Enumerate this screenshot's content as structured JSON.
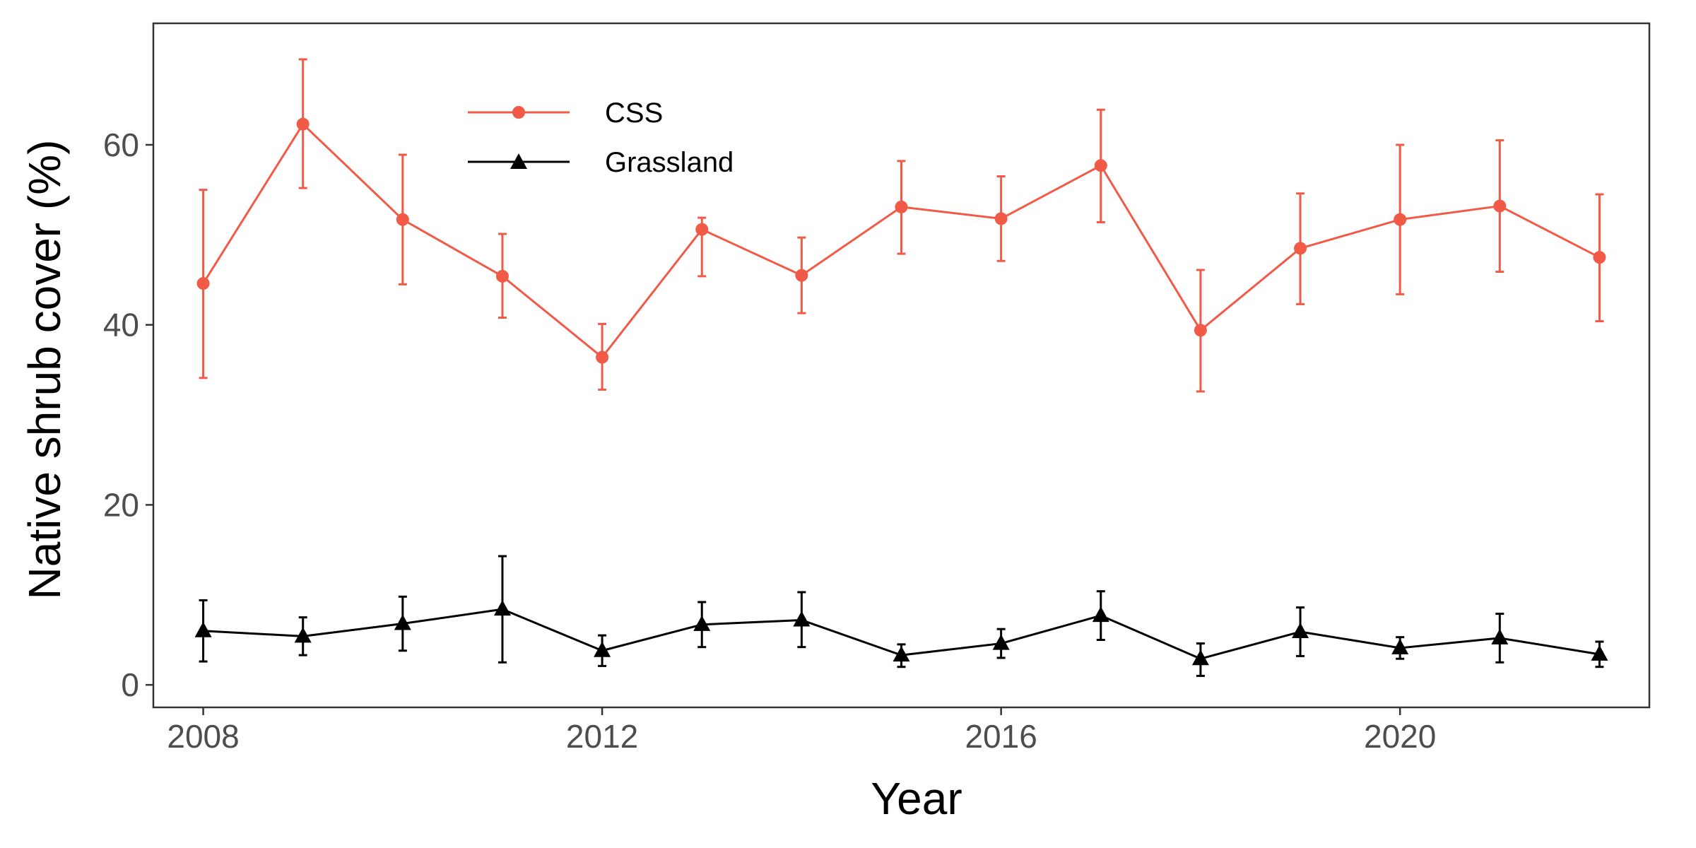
{
  "chart_data": {
    "type": "line",
    "xlabel": "Year",
    "ylabel": "Native shrub cover (%)",
    "xlim": [
      2007.5,
      2022.5
    ],
    "ylim": [
      -2.5,
      73.5
    ],
    "x_ticks": [
      2008,
      2012,
      2016,
      2020
    ],
    "y_ticks": [
      0,
      20,
      40,
      60
    ],
    "grid": false,
    "legend_position": "top-left inside",
    "x": [
      2008,
      2009,
      2010,
      2011,
      2012,
      2013,
      2014,
      2015,
      2016,
      2017,
      2018,
      2019,
      2020,
      2021,
      2022
    ],
    "series": [
      {
        "name": "CSS",
        "color": "#f15a47",
        "marker": "circle",
        "values": [
          44.6,
          62.3,
          51.7,
          45.4,
          36.4,
          50.6,
          45.5,
          53.1,
          51.8,
          57.7,
          39.4,
          48.5,
          51.7,
          53.2,
          47.5
        ],
        "lower": [
          34.1,
          55.2,
          44.5,
          40.8,
          32.8,
          45.4,
          41.3,
          47.9,
          47.1,
          51.4,
          32.6,
          42.3,
          43.4,
          45.9,
          40.4
        ],
        "upper": [
          55.0,
          69.5,
          58.9,
          50.1,
          40.1,
          51.9,
          49.7,
          58.2,
          56.5,
          63.9,
          46.1,
          54.6,
          60.0,
          60.5,
          54.5
        ]
      },
      {
        "name": "Grassland",
        "color": "#000000",
        "marker": "triangle",
        "values": [
          6.0,
          5.4,
          6.8,
          8.4,
          3.8,
          6.7,
          7.2,
          3.3,
          4.6,
          7.7,
          2.9,
          5.9,
          4.1,
          5.2,
          3.4
        ],
        "lower": [
          2.6,
          3.3,
          3.8,
          2.5,
          2.1,
          4.2,
          4.2,
          2.0,
          3.0,
          5.0,
          1.0,
          3.2,
          2.9,
          2.5,
          2.0
        ],
        "upper": [
          9.4,
          7.5,
          9.8,
          14.3,
          5.5,
          9.2,
          10.3,
          4.5,
          6.2,
          10.4,
          4.6,
          8.6,
          5.3,
          7.9,
          4.8
        ]
      }
    ]
  }
}
